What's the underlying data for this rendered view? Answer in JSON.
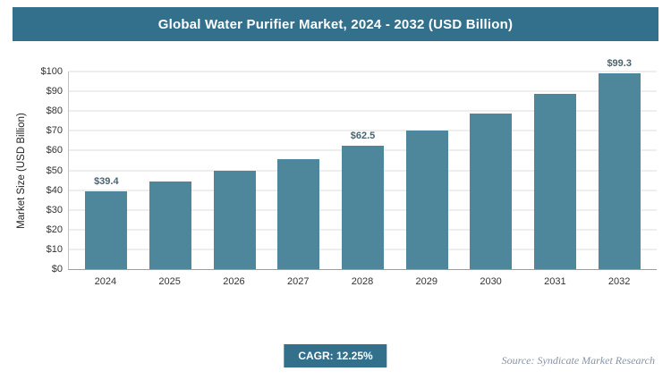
{
  "header": {
    "title": "Global Water Purifier Market, 2024 - 2032 (USD Billion)"
  },
  "chart_data": {
    "type": "bar",
    "title": "Global Water Purifier Market, 2024 - 2032 (USD Billion)",
    "xlabel": "",
    "ylabel": "Market Size (USD Billion)",
    "ylim": [
      0,
      100
    ],
    "ytick_step": 10,
    "ytick_prefix": "$",
    "grid": true,
    "legend_position": "none",
    "categories": [
      "2024",
      "2025",
      "2026",
      "2027",
      "2028",
      "2029",
      "2030",
      "2031",
      "2032"
    ],
    "values": [
      39.4,
      44.2,
      49.6,
      55.7,
      62.5,
      70.2,
      78.8,
      88.5,
      99.3
    ],
    "point_labels": [
      "$39.4",
      null,
      null,
      null,
      "$62.5",
      null,
      null,
      null,
      "$99.3"
    ],
    "bar_color": "#4e869c"
  },
  "footer": {
    "cagr_label": "CAGR: 12.25%",
    "source": "Source: Syndicate Market Research"
  },
  "colors": {
    "accent": "#33708c",
    "bar": "#4e869c",
    "grid": "#dcdcdc"
  }
}
